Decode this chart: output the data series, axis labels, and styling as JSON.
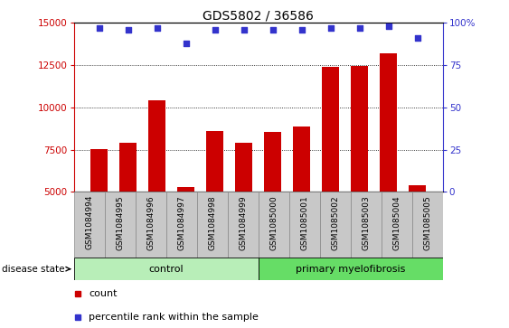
{
  "title": "GDS5802 / 36586",
  "samples": [
    "GSM1084994",
    "GSM1084995",
    "GSM1084996",
    "GSM1084997",
    "GSM1084998",
    "GSM1084999",
    "GSM1085000",
    "GSM1085001",
    "GSM1085002",
    "GSM1085003",
    "GSM1085004",
    "GSM1085005"
  ],
  "counts": [
    7550,
    7900,
    10400,
    5300,
    8600,
    7900,
    8550,
    8850,
    12400,
    12450,
    13200,
    5400
  ],
  "percentiles": [
    97,
    96,
    97,
    88,
    96,
    96,
    96,
    96,
    97,
    97,
    98,
    91
  ],
  "bar_color": "#cc0000",
  "dot_color": "#3333cc",
  "ylim_left": [
    5000,
    15000
  ],
  "ylim_right": [
    0,
    100
  ],
  "yticks_left": [
    5000,
    7500,
    10000,
    12500,
    15000
  ],
  "yticks_right": [
    0,
    25,
    50,
    75,
    100
  ],
  "groups": [
    {
      "label": "control",
      "count": 6,
      "color": "#b8eeb8"
    },
    {
      "label": "primary myelofibrosis",
      "count": 6,
      "color": "#66dd66"
    }
  ],
  "disease_state_label": "disease state",
  "legend_count_label": "count",
  "legend_percentile_label": "percentile rank within the sample",
  "xtick_bg_color": "#c8c8c8",
  "xtick_sep_color": "#888888",
  "plot_bg_color": "#ffffff",
  "title_fontsize": 10,
  "axis_fontsize": 8,
  "tick_fontsize": 7.5,
  "group_fontsize": 8,
  "legend_fontsize": 8
}
